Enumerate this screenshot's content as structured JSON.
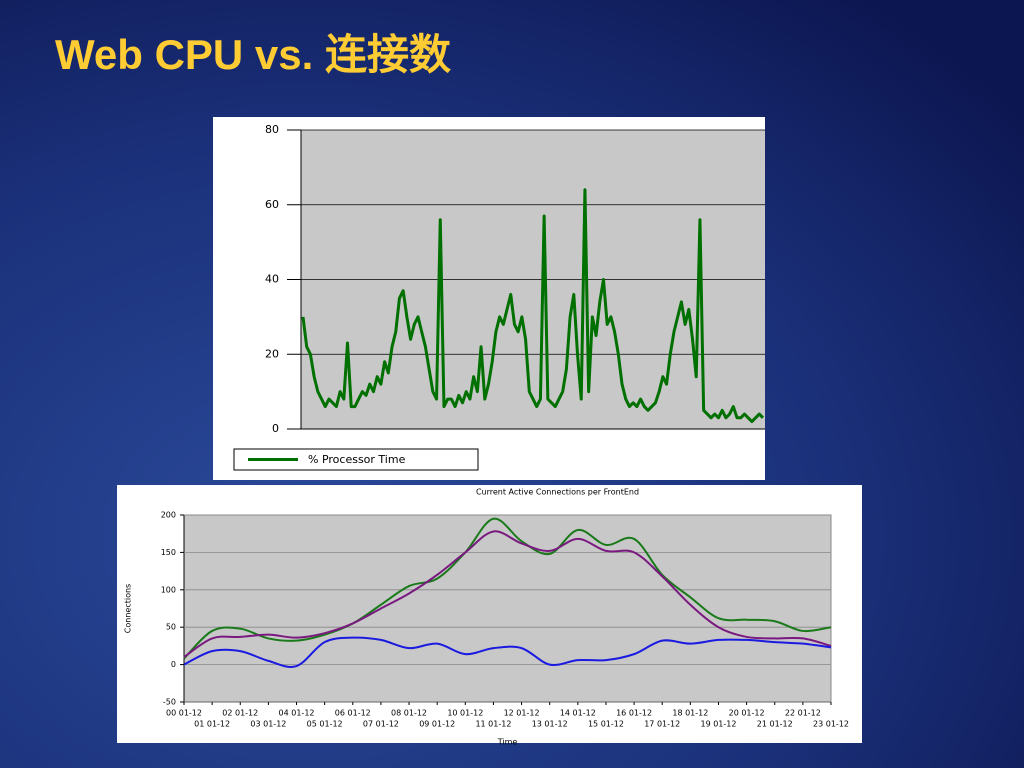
{
  "slide_title": "Web CPU vs. 连接数",
  "chart_data": [
    {
      "type": "line",
      "ylim": [
        0,
        80
      ],
      "yticks": [
        0,
        20,
        40,
        60,
        80
      ],
      "grid": true,
      "legend": "bottom",
      "series": [
        {
          "name": "% Processor Time",
          "color": "#007000",
          "values": [
            30,
            22,
            20,
            14,
            10,
            8,
            6,
            8,
            7,
            6,
            10,
            8,
            23,
            6,
            6,
            8,
            10,
            9,
            12,
            10,
            14,
            12,
            18,
            15,
            22,
            26,
            35,
            37,
            30,
            24,
            28,
            30,
            26,
            22,
            16,
            10,
            8,
            56,
            6,
            8,
            8,
            6,
            9,
            7,
            10,
            8,
            14,
            10,
            22,
            8,
            12,
            18,
            26,
            30,
            28,
            32,
            36,
            28,
            26,
            30,
            24,
            10,
            8,
            6,
            8,
            57,
            8,
            7,
            6,
            8,
            10,
            16,
            30,
            36,
            20,
            8,
            64,
            10,
            30,
            25,
            34,
            40,
            28,
            30,
            26,
            20,
            12,
            8,
            6,
            7,
            6,
            8,
            6,
            5,
            6,
            7,
            10,
            14,
            12,
            20,
            26,
            30,
            34,
            28,
            32,
            24,
            14,
            56,
            5,
            4,
            3,
            4,
            3,
            5,
            3,
            4,
            6,
            3,
            3,
            4,
            3,
            2,
            3,
            4,
            3
          ]
        }
      ]
    },
    {
      "type": "line",
      "title": "Current Active Connections per FrontEnd",
      "y_label": "Connections",
      "x_label": "Time",
      "categories": [
        "00 01-12",
        "01 01-12",
        "02 01-12",
        "03 01-12",
        "04 01-12",
        "05 01-12",
        "06 01-12",
        "07 01-12",
        "08 01-12",
        "09 01-12",
        "10 01-12",
        "11 01-12",
        "12 01-12",
        "13 01-12",
        "14 01-12",
        "15 01-12",
        "16 01-12",
        "17 01-12",
        "18 01-12",
        "19 01-12",
        "20 01-12",
        "21 01-12",
        "22 01-12",
        "23 01-12"
      ],
      "ylim": [
        -50,
        200
      ],
      "yticks": [
        -50,
        0,
        50,
        100,
        150,
        200
      ],
      "grid": true,
      "smooth": true,
      "series": [
        {
          "color": "#1a7a1a",
          "values": [
            8,
            45,
            48,
            35,
            32,
            40,
            55,
            80,
            105,
            115,
            150,
            195,
            165,
            148,
            180,
            160,
            168,
            120,
            90,
            62,
            60,
            58,
            45,
            50
          ]
        },
        {
          "color": "#7a1a80",
          "values": [
            10,
            35,
            37,
            40,
            36,
            42,
            55,
            75,
            95,
            120,
            150,
            178,
            162,
            152,
            168,
            152,
            150,
            118,
            80,
            50,
            37,
            35,
            35,
            25
          ]
        },
        {
          "color": "#1a1ae0",
          "values": [
            0,
            18,
            18,
            5,
            -2,
            30,
            36,
            33,
            22,
            28,
            14,
            22,
            22,
            0,
            6,
            6,
            14,
            32,
            28,
            33,
            33,
            30,
            28,
            23
          ]
        }
      ]
    }
  ]
}
